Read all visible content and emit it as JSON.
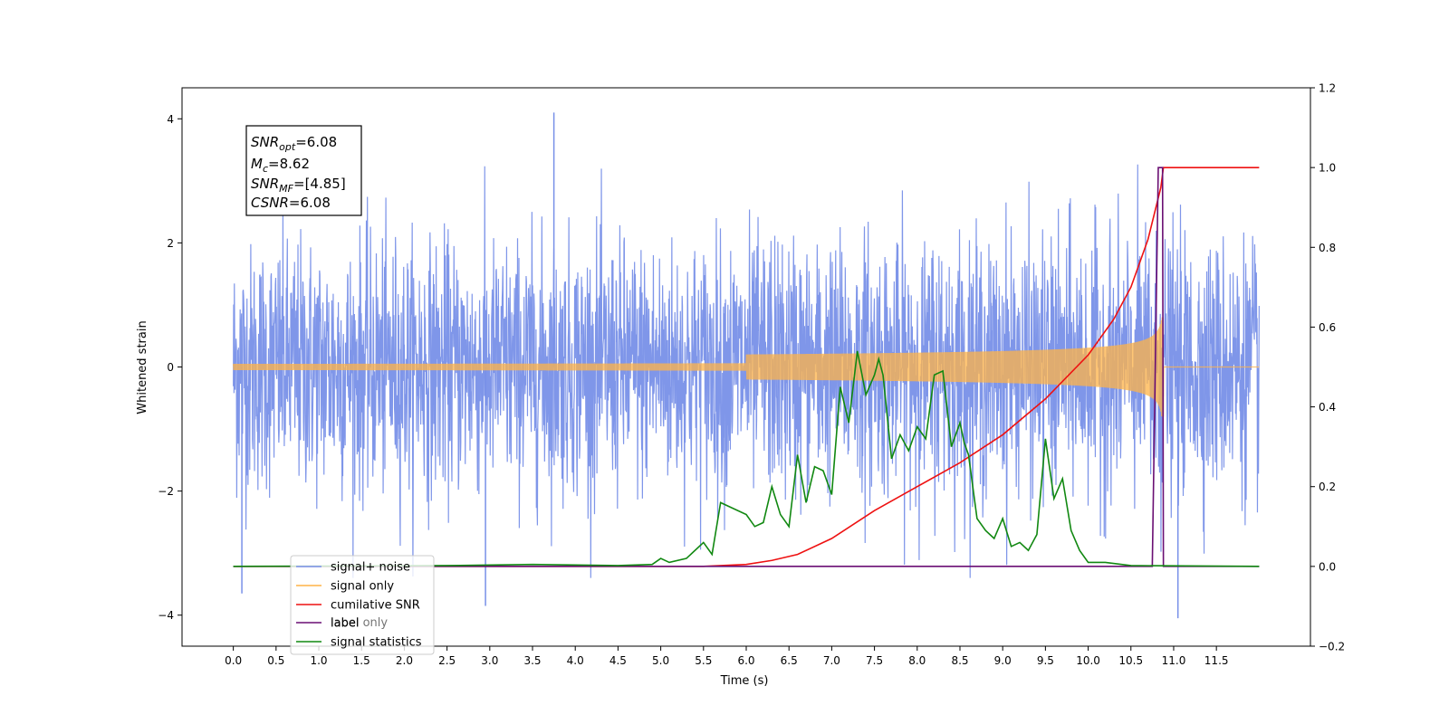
{
  "chart_data": {
    "type": "line",
    "xlabel": "Time (s)",
    "ylabel": "Whitened strain",
    "xlim": [
      -0.6,
      12.6
    ],
    "ylim_left": [
      -4.5,
      4.5
    ],
    "ylim_right": [
      -0.2,
      1.2
    ],
    "x_ticks": [
      "0.0",
      "0.5",
      "1.0",
      "1.5",
      "2.0",
      "2.5",
      "3.0",
      "3.5",
      "4.0",
      "4.5",
      "5.0",
      "5.5",
      "6.0",
      "6.5",
      "7.0",
      "7.5",
      "8.0",
      "8.5",
      "9.0",
      "9.5",
      "10.0",
      "10.5",
      "11.0",
      "11.5"
    ],
    "y_ticks_left": [
      "4",
      "2",
      "0",
      "−2",
      "−4"
    ],
    "y_ticks_left_values": [
      4,
      2,
      0,
      -2,
      -4
    ],
    "y_ticks_right": [
      "1.2",
      "1.0",
      "0.8",
      "0.6",
      "0.4",
      "0.2",
      "0.0",
      "−0.2"
    ],
    "y_ticks_right_values": [
      1.2,
      1.0,
      0.8,
      0.6,
      0.4,
      0.2,
      0.0,
      -0.2
    ],
    "grid": false,
    "legend_placement": "lower-left",
    "annotation": {
      "snr_opt": {
        "label": "SNR",
        "sub": "opt",
        "value": "=6.08"
      },
      "mc": {
        "label": "M",
        "sub": "c",
        "value": "=8.62"
      },
      "snr_mf": {
        "label": "SNR",
        "sub": "MF",
        "value": "=[4.85]"
      },
      "csnr": {
        "label": "CSNR",
        "sub": "",
        "value": "=6.08"
      }
    },
    "series": [
      {
        "name": "signal+ noise",
        "axis": "left",
        "color": "#7890e8",
        "style": "noise band",
        "x_range": [
          0.0,
          12.0
        ],
        "typical_amplitude": 2.0,
        "max_abs_peaks": [
          {
            "x": 3.75,
            "y": 4.1
          },
          {
            "x": 2.95,
            "y": -3.85
          },
          {
            "x": 11.05,
            "y": -4.05
          },
          {
            "x": 0.1,
            "y": -3.65
          }
        ]
      },
      {
        "name": "signal only",
        "axis": "left",
        "color": "#ffb347",
        "style": "chirp",
        "x_range": [
          0.0,
          12.0
        ],
        "merger_time": 10.88,
        "peak_amplitude": 0.8
      },
      {
        "name": "cumilative SNR",
        "axis": "right",
        "color": "#ee1111",
        "x": [
          0.0,
          5.0,
          5.5,
          6.0,
          6.3,
          6.6,
          7.0,
          7.5,
          8.0,
          8.5,
          9.0,
          9.5,
          10.0,
          10.3,
          10.5,
          10.7,
          10.85,
          10.88,
          12.0
        ],
        "values": [
          0.0,
          0.0,
          0.0,
          0.005,
          0.015,
          0.03,
          0.07,
          0.14,
          0.2,
          0.26,
          0.33,
          0.42,
          0.53,
          0.62,
          0.7,
          0.82,
          0.95,
          1.0,
          1.0
        ]
      },
      {
        "name": "label",
        "axis": "right",
        "color": "#6a0f73",
        "x": [
          0.0,
          10.75,
          10.82,
          10.87,
          10.88,
          12.0
        ],
        "values": [
          0.0,
          0.0,
          1.0,
          1.0,
          0.0,
          0.0
        ]
      },
      {
        "name": "signal statistics",
        "axis": "right",
        "color": "#118811",
        "x": [
          0.0,
          2.5,
          3.5,
          4.5,
          4.9,
          5.0,
          5.1,
          5.3,
          5.5,
          5.6,
          5.7,
          5.8,
          6.0,
          6.1,
          6.2,
          6.3,
          6.4,
          6.5,
          6.6,
          6.7,
          6.8,
          6.9,
          7.0,
          7.1,
          7.2,
          7.3,
          7.4,
          7.5,
          7.55,
          7.6,
          7.7,
          7.8,
          7.9,
          8.0,
          8.1,
          8.2,
          8.3,
          8.4,
          8.5,
          8.55,
          8.6,
          8.7,
          8.8,
          8.9,
          9.0,
          9.1,
          9.2,
          9.3,
          9.4,
          9.5,
          9.6,
          9.7,
          9.8,
          9.9,
          10.0,
          10.2,
          10.5,
          12.0
        ],
        "values": [
          0.0,
          0.002,
          0.005,
          0.002,
          0.005,
          0.02,
          0.01,
          0.02,
          0.06,
          0.03,
          0.16,
          0.15,
          0.13,
          0.1,
          0.11,
          0.2,
          0.13,
          0.1,
          0.28,
          0.16,
          0.25,
          0.24,
          0.18,
          0.45,
          0.36,
          0.54,
          0.43,
          0.48,
          0.52,
          0.48,
          0.27,
          0.33,
          0.29,
          0.35,
          0.32,
          0.48,
          0.49,
          0.3,
          0.36,
          0.31,
          0.28,
          0.12,
          0.09,
          0.07,
          0.12,
          0.05,
          0.06,
          0.04,
          0.08,
          0.32,
          0.17,
          0.22,
          0.09,
          0.04,
          0.01,
          0.01,
          0.002,
          0.0
        ]
      }
    ],
    "legend": [
      "signal+ noise",
      "signal only",
      "cumilative SNR",
      "label",
      "signal statistics"
    ],
    "legend_overlap_text": "label only"
  }
}
